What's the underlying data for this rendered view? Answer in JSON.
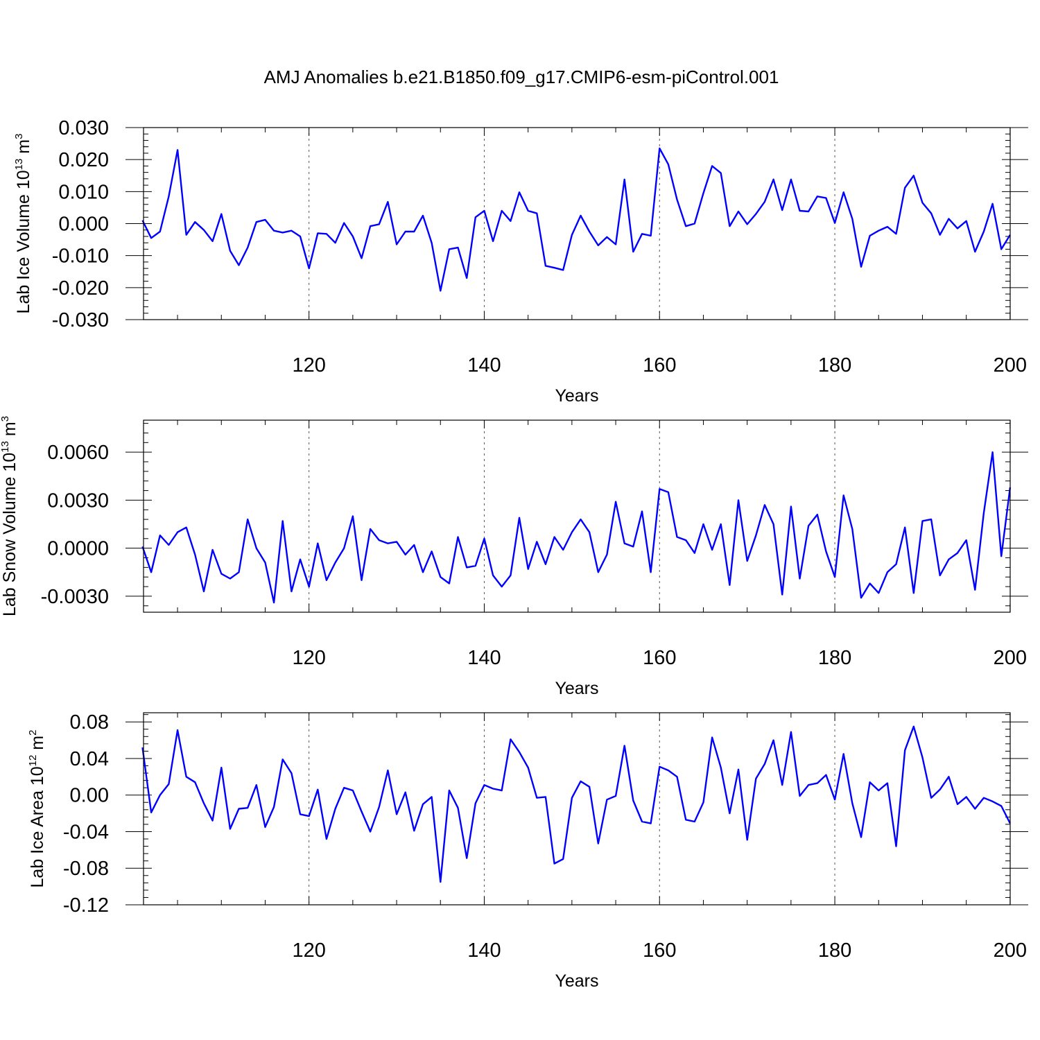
{
  "title": "AMJ Anomalies b.e21.B1850.f09_g17.CMIP6-esm-piControl.001",
  "colors": {
    "line": "#0000ff",
    "frame": "#000000",
    "grid": "#555555"
  },
  "chart_data": [
    {
      "type": "line",
      "ylabel": "Lab Ice Volume 10",
      "ylabel_exp": "13",
      "ylabel_unit": " m",
      "ylabel_unit_exp": "3",
      "xlabel": "Years",
      "xlim": [
        101,
        200
      ],
      "ylim": [
        -0.03,
        0.03
      ],
      "xticks": [
        120,
        140,
        160,
        180,
        200
      ],
      "xtick_labels": [
        "120",
        "140",
        "160",
        "180",
        "200"
      ],
      "yticks": [
        -0.03,
        -0.02,
        -0.01,
        0.0,
        0.01,
        0.02,
        0.03
      ],
      "ytick_labels": [
        "-0.030",
        "-0.020",
        "-0.010",
        "0.000",
        "0.010",
        "0.020",
        "0.030"
      ],
      "grid_x": [
        120,
        140,
        160,
        180
      ],
      "series": [
        {
          "name": "Lab Ice Volume",
          "x_start": 101,
          "values": [
            0.001,
            -0.0045,
            -0.0025,
            0.0085,
            0.023,
            -0.0035,
            0.0005,
            -0.002,
            -0.0055,
            0.003,
            -0.0085,
            -0.013,
            -0.0075,
            0.0005,
            0.0012,
            -0.0022,
            -0.0028,
            -0.0022,
            -0.004,
            -0.014,
            -0.003,
            -0.0032,
            -0.006,
            0.0002,
            -0.004,
            -0.0108,
            -0.0008,
            -0.0002,
            0.0068,
            -0.0065,
            -0.0025,
            -0.0025,
            0.0025,
            -0.006,
            -0.021,
            -0.008,
            -0.0075,
            -0.017,
            0.002,
            0.004,
            -0.0055,
            0.004,
            0.0008,
            0.0098,
            0.004,
            0.0032,
            -0.0132,
            -0.0138,
            -0.0145,
            -0.0035,
            0.0025,
            -0.0025,
            -0.0068,
            -0.0042,
            -0.0065,
            0.0138,
            -0.0088,
            -0.0032,
            -0.0038,
            0.0235,
            0.0185,
            0.0075,
            -0.0008,
            0.0,
            0.0095,
            0.018,
            0.0158,
            -0.0008,
            0.0038,
            -0.0002,
            0.003,
            0.0068,
            0.0138,
            0.0042,
            0.0138,
            0.004,
            0.0038,
            0.0085,
            0.008,
            0.0002,
            0.0098,
            0.0015,
            -0.0135,
            -0.0038,
            -0.0022,
            -0.001,
            -0.0032,
            0.0112,
            0.015,
            0.0065,
            0.0032,
            -0.0035,
            0.0015,
            -0.0015,
            0.0008,
            -0.0088,
            -0.0025,
            0.0062,
            -0.008,
            -0.0035
          ]
        }
      ]
    },
    {
      "type": "line",
      "ylabel": "Lab Snow Volume 10",
      "ylabel_exp": "13",
      "ylabel_unit": " m",
      "ylabel_unit_exp": "3",
      "xlabel": "Years",
      "xlim": [
        101,
        200
      ],
      "ylim": [
        -0.004,
        0.008
      ],
      "xticks": [
        120,
        140,
        160,
        180,
        200
      ],
      "xtick_labels": [
        "120",
        "140",
        "160",
        "180",
        "200"
      ],
      "yticks": [
        -0.003,
        0.0,
        0.003,
        0.006
      ],
      "ytick_labels": [
        "-0.0030",
        "0.0000",
        "0.0030",
        "0.0060"
      ],
      "grid_x": [
        120,
        140,
        160,
        180
      ],
      "series": [
        {
          "name": "Lab Snow Volume",
          "x_start": 101,
          "values": [
            0.0001,
            -0.0015,
            0.0008,
            0.0002,
            0.001,
            0.0013,
            -0.0004,
            -0.0027,
            -0.0001,
            -0.0016,
            -0.0019,
            -0.0015,
            0.0018,
            0.0,
            -0.0009,
            -0.0034,
            0.0017,
            -0.0027,
            -0.0007,
            -0.0024,
            0.0003,
            -0.002,
            -0.0009,
            0.0,
            0.002,
            -0.002,
            0.0012,
            0.0005,
            0.0003,
            0.0004,
            -0.0004,
            0.0002,
            -0.0015,
            -0.0002,
            -0.0018,
            -0.0022,
            0.0007,
            -0.0012,
            -0.0011,
            0.0006,
            -0.0017,
            -0.0024,
            -0.0017,
            0.0019,
            -0.0013,
            0.0004,
            -0.001,
            0.0007,
            -0.0001,
            0.001,
            0.0018,
            0.001,
            -0.0015,
            -0.0004,
            0.0029,
            0.0003,
            0.0001,
            0.0023,
            -0.0015,
            0.0037,
            0.0035,
            0.0007,
            0.0005,
            -0.0003,
            0.0015,
            -0.0001,
            0.0015,
            -0.0023,
            0.003,
            -0.0008,
            0.0008,
            0.0027,
            0.0015,
            -0.0029,
            0.0026,
            -0.0019,
            0.0014,
            0.0021,
            -0.0002,
            -0.0018,
            0.0033,
            0.0012,
            -0.0031,
            -0.0022,
            -0.0028,
            -0.0015,
            -0.001,
            0.0013,
            -0.0028,
            0.0017,
            0.0018,
            -0.0017,
            -0.0007,
            -0.0003,
            0.0005,
            -0.0026,
            0.0022,
            0.006,
            -0.0005,
            0.0038
          ]
        }
      ]
    },
    {
      "type": "line",
      "ylabel": "Lab Ice Area 10",
      "ylabel_exp": "12",
      "ylabel_unit": " m",
      "ylabel_unit_exp": "2",
      "xlabel": "Years",
      "xlim": [
        101,
        200
      ],
      "ylim": [
        -0.12,
        0.09
      ],
      "xticks": [
        120,
        140,
        160,
        180,
        200
      ],
      "xtick_labels": [
        "120",
        "140",
        "160",
        "180",
        "200"
      ],
      "yticks": [
        -0.12,
        -0.08,
        -0.04,
        0.0,
        0.04,
        0.08
      ],
      "ytick_labels": [
        "-0.12",
        "-0.08",
        "-0.04",
        "0.00",
        "0.04",
        "0.08"
      ],
      "grid_x": [
        120,
        140,
        160,
        180
      ],
      "series": [
        {
          "name": "Lab Ice Area",
          "x_start": 101,
          "values": [
            0.052,
            -0.019,
            0.0,
            0.012,
            0.071,
            0.02,
            0.014,
            -0.009,
            -0.028,
            0.03,
            -0.037,
            -0.015,
            -0.014,
            0.011,
            -0.035,
            -0.013,
            0.039,
            0.024,
            -0.021,
            -0.023,
            0.006,
            -0.048,
            -0.015,
            0.008,
            0.005,
            -0.018,
            -0.04,
            -0.013,
            0.027,
            -0.021,
            0.003,
            -0.039,
            -0.01,
            -0.002,
            -0.095,
            0.005,
            -0.014,
            -0.069,
            -0.009,
            0.011,
            0.007,
            0.005,
            0.061,
            0.047,
            0.03,
            -0.003,
            -0.002,
            -0.075,
            -0.07,
            -0.003,
            0.015,
            0.009,
            -0.053,
            -0.005,
            -0.001,
            0.054,
            -0.006,
            -0.029,
            -0.031,
            0.031,
            0.027,
            0.02,
            -0.027,
            -0.029,
            -0.008,
            0.063,
            0.03,
            -0.02,
            0.028,
            -0.049,
            0.018,
            0.034,
            0.06,
            0.011,
            0.069,
            -0.001,
            0.011,
            0.013,
            0.022,
            -0.005,
            0.045,
            -0.009,
            -0.046,
            0.014,
            0.005,
            0.013,
            -0.056,
            0.049,
            0.075,
            0.041,
            -0.003,
            0.006,
            0.02,
            -0.01,
            -0.002,
            -0.015,
            -0.003,
            -0.007,
            -0.012,
            -0.031
          ]
        }
      ]
    }
  ]
}
